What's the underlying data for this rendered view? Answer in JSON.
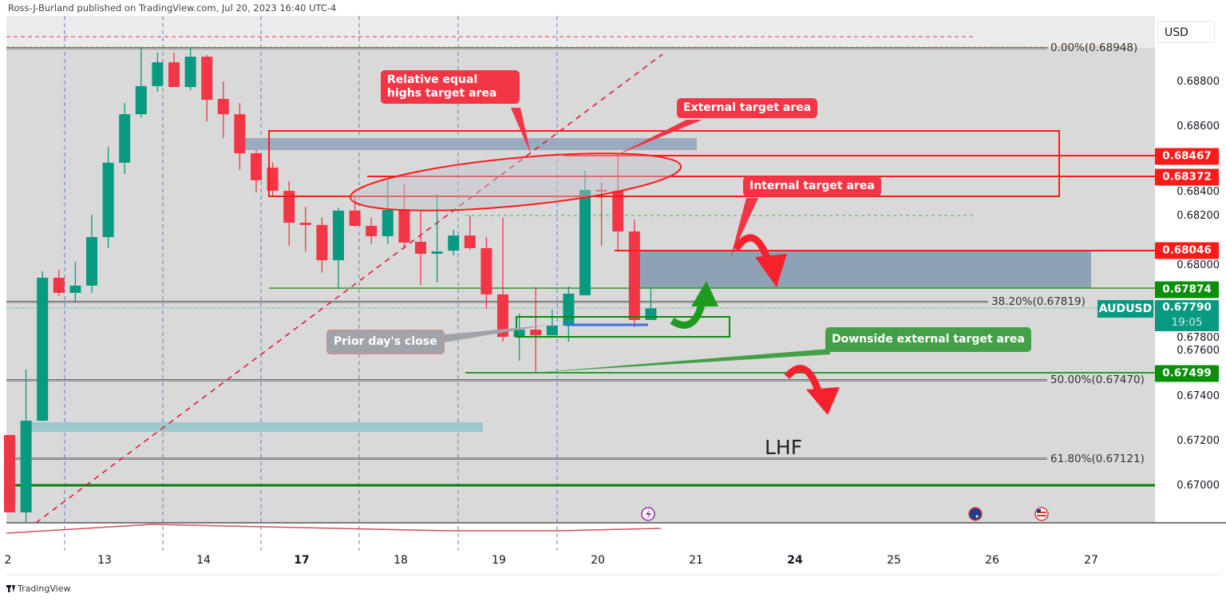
{
  "header": {
    "published": "Ross-J-Burland published on TradingView.com, Jul 20, 2023 16:40 UTC-4"
  },
  "footer": {
    "logo_text": "TradingView"
  },
  "colors": {
    "up": "#089981",
    "down": "#f23645",
    "plot_bg": "#d9d9d9",
    "annotation_red": "#f23645",
    "annotation_green": "#43a047",
    "level_red": "#ff1a1a",
    "level_green": "#008c00"
  },
  "axis": {
    "currency": "USD"
  },
  "symbol": {
    "name": "AUDUSD",
    "last_price": "0.67790",
    "countdown": "19:05"
  },
  "chart_data": {
    "type": "candlestick",
    "timeframe_candles_per_day": 6,
    "x_tick_labels": [
      {
        "label": "2",
        "bold": false
      },
      {
        "label": "13",
        "bold": false
      },
      {
        "label": "14",
        "bold": false
      },
      {
        "label": "17",
        "bold": true
      },
      {
        "label": "18",
        "bold": false
      },
      {
        "label": "19",
        "bold": false
      },
      {
        "label": "20",
        "bold": false
      },
      {
        "label": "21",
        "bold": false
      },
      {
        "label": "24",
        "bold": true
      },
      {
        "label": "25",
        "bold": false
      },
      {
        "label": "26",
        "bold": false
      },
      {
        "label": "27",
        "bold": false
      }
    ],
    "y_tick_labels": [
      "0.68800",
      "0.68600",
      "0.68400",
      "0.68200",
      "0.68000",
      "0.67800",
      "0.67600",
      "0.67400",
      "0.67200",
      "0.67000"
    ],
    "ylim": [
      0.6682,
      0.691
    ],
    "candles": [
      [
        0.67226,
        0.67226,
        0.66882,
        0.66882
      ],
      [
        0.66882,
        0.67518,
        0.66839,
        0.6729
      ],
      [
        0.6729,
        0.67955,
        0.67287,
        0.67926
      ],
      [
        0.67926,
        0.67962,
        0.67845,
        0.67859
      ],
      [
        0.67859,
        0.67997,
        0.67816,
        0.67891
      ],
      [
        0.67891,
        0.68207,
        0.67859,
        0.68107
      ],
      [
        0.68107,
        0.68509,
        0.68058,
        0.68438
      ],
      [
        0.68438,
        0.68704,
        0.68388,
        0.68654
      ],
      [
        0.68654,
        0.68949,
        0.6864,
        0.68779
      ],
      [
        0.68779,
        0.68928,
        0.68754,
        0.68885
      ],
      [
        0.68885,
        0.68928,
        0.68775,
        0.68775
      ],
      [
        0.68775,
        0.68949,
        0.68761,
        0.6891
      ],
      [
        0.6891,
        0.68917,
        0.68622,
        0.68718
      ],
      [
        0.68722,
        0.688,
        0.68548,
        0.68654
      ],
      [
        0.68654,
        0.68704,
        0.68406,
        0.6848
      ],
      [
        0.6848,
        0.68495,
        0.68306,
        0.6836
      ],
      [
        0.68416,
        0.6844,
        0.68289,
        0.68313
      ],
      [
        0.68313,
        0.68356,
        0.68068,
        0.68171
      ],
      [
        0.68171,
        0.68242,
        0.68043,
        0.68161
      ],
      [
        0.68161,
        0.68196,
        0.67948,
        0.68004
      ],
      [
        0.68004,
        0.68239,
        0.67877,
        0.68225
      ],
      [
        0.68225,
        0.68285,
        0.68154,
        0.68157
      ],
      [
        0.68157,
        0.68193,
        0.68075,
        0.68111
      ],
      [
        0.68111,
        0.6837,
        0.68075,
        0.68228
      ],
      [
        0.68228,
        0.68342,
        0.68054,
        0.68083
      ],
      [
        0.68086,
        0.68221,
        0.67894,
        0.68033
      ],
      [
        0.68033,
        0.68299,
        0.67905,
        0.68043
      ],
      [
        0.68047,
        0.68139,
        0.68026,
        0.68114
      ],
      [
        0.68114,
        0.68203,
        0.68051,
        0.68058
      ],
      [
        0.68058,
        0.68107,
        0.67788,
        0.67852
      ],
      [
        0.67852,
        0.68194,
        0.67642,
        0.67663
      ],
      [
        0.67663,
        0.67766,
        0.67557,
        0.67695
      ],
      [
        0.67695,
        0.67884,
        0.67504,
        0.6767
      ],
      [
        0.6767,
        0.67784,
        0.6767,
        0.67713
      ],
      [
        0.67713,
        0.67887,
        0.67642,
        0.67855
      ],
      [
        0.67848,
        0.68402,
        0.67848,
        0.68317
      ],
      [
        0.68317,
        0.68352,
        0.68068,
        0.68313
      ],
      [
        0.68313,
        0.6847,
        0.68051,
        0.68132
      ],
      [
        0.68132,
        0.68185,
        0.67706,
        0.67738
      ],
      [
        0.67738,
        0.67877,
        0.67738,
        0.6779
      ]
    ],
    "candle_format": [
      "open",
      "high",
      "low",
      "close"
    ],
    "price_levels": [
      {
        "label": "0.68467",
        "value": 0.68467,
        "color": "red"
      },
      {
        "label": "0.68372",
        "value": 0.68372,
        "color": "red"
      },
      {
        "label": "0.68046",
        "value": 0.68046,
        "color": "red"
      },
      {
        "label": "0.67874",
        "value": 0.67874,
        "color": "green"
      },
      {
        "label": "0.67499",
        "value": 0.67499,
        "color": "green"
      }
    ],
    "fibonacci": [
      {
        "label": "0.00%(0.68948)",
        "value": 0.68948
      },
      {
        "label": "38.20%(0.67819)",
        "value": 0.67819
      },
      {
        "label": "50.00%(0.67470)",
        "value": 0.6747
      },
      {
        "label": "61.80%(0.67121)",
        "value": 0.67121
      }
    ],
    "support_level": 0.67,
    "annotations": {
      "relative_equal_highs": "Relative equal highs target area",
      "external_target": "External target area",
      "internal_target": "Internal target area",
      "downside_external_target": "Downside external target area",
      "prior_day_close": "Prior day's close",
      "lhf": "LHF"
    },
    "events": [
      "lightning-event-icon",
      "australia-flag-icon",
      "us-flag-icon"
    ]
  }
}
